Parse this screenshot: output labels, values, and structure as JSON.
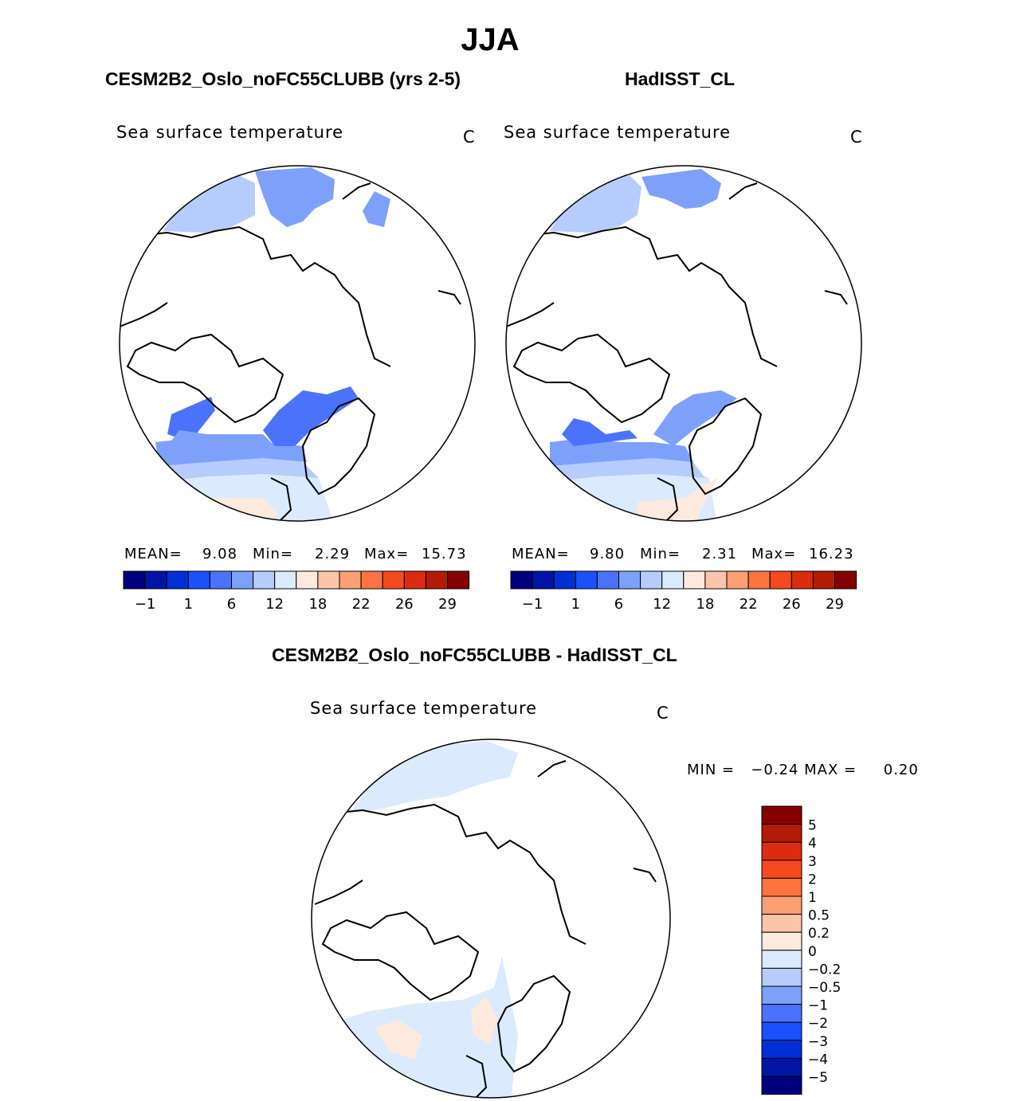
{
  "title": "JJA",
  "colors": {
    "seq": [
      "#00007f",
      "#0015a3",
      "#002fd4",
      "#1c4fff",
      "#4b72fb",
      "#7da1fb",
      "#b6ccfd",
      "#dbeafd",
      "#fde9dd",
      "#fbc5aa",
      "#fb9f74",
      "#fb7440",
      "#f5491f",
      "#dc2c0f",
      "#b21b04",
      "#850000"
    ],
    "diff": [
      "#850000",
      "#b21b04",
      "#dc2c0f",
      "#f5491f",
      "#fb7440",
      "#fb9f74",
      "#fbc5aa",
      "#fde9dd",
      "#dbeafd",
      "#b6ccfd",
      "#7da1fb",
      "#4b72fb",
      "#1c4fff",
      "#002fd4",
      "#0015a3",
      "#00007f"
    ]
  },
  "panels": [
    {
      "title": "CESM2B2_Oslo_noFC55CLUBB (yrs 2-5)",
      "field": "Sea surface temperature",
      "units": "C",
      "mean_label": "MEAN=",
      "mean": "9.08",
      "min_label": "Min=",
      "min": "2.29",
      "max_label": "Max=",
      "max": "15.73"
    },
    {
      "title": "HadISST_CL",
      "field": "Sea surface temperature",
      "units": "C",
      "mean_label": "MEAN=",
      "mean": "9.80",
      "min_label": "Min=",
      "min": "2.31",
      "max_label": "Max=",
      "max": "16.23"
    },
    {
      "title": "CESM2B2_Oslo_noFC55CLUBB - HadISST_CL",
      "field": "Sea surface temperature",
      "units": "C",
      "minmax_text": "MIN =   −0.24 MAX =     0.20"
    }
  ],
  "chart_data": [
    {
      "type": "heatmap",
      "title": "CESM2B2_Oslo_noFC55CLUBB (yrs 2-5)",
      "projection": "polar-stereographic",
      "colorbar_tick_labels": [
        "−1",
        "1",
        "6",
        "12",
        "18",
        "22",
        "26",
        "29"
      ],
      "mean": 9.08,
      "min": 2.29,
      "max": 15.73
    },
    {
      "type": "heatmap",
      "title": "HadISST_CL",
      "projection": "polar-stereographic",
      "colorbar_tick_labels": [
        "−1",
        "1",
        "6",
        "12",
        "18",
        "22",
        "26",
        "29"
      ],
      "mean": 9.8,
      "min": 2.31,
      "max": 16.23
    },
    {
      "type": "heatmap",
      "title": "CESM2B2_Oslo_noFC55CLUBB - HadISST_CL",
      "projection": "polar-stereographic",
      "colorbar_tick_labels": [
        "5",
        "4",
        "3",
        "2",
        "1",
        "0.5",
        "0.2",
        "0",
        "−0.2",
        "−0.5",
        "−1",
        "−2",
        "−3",
        "−4",
        "−5"
      ],
      "min": -0.24,
      "max": 0.2
    }
  ]
}
